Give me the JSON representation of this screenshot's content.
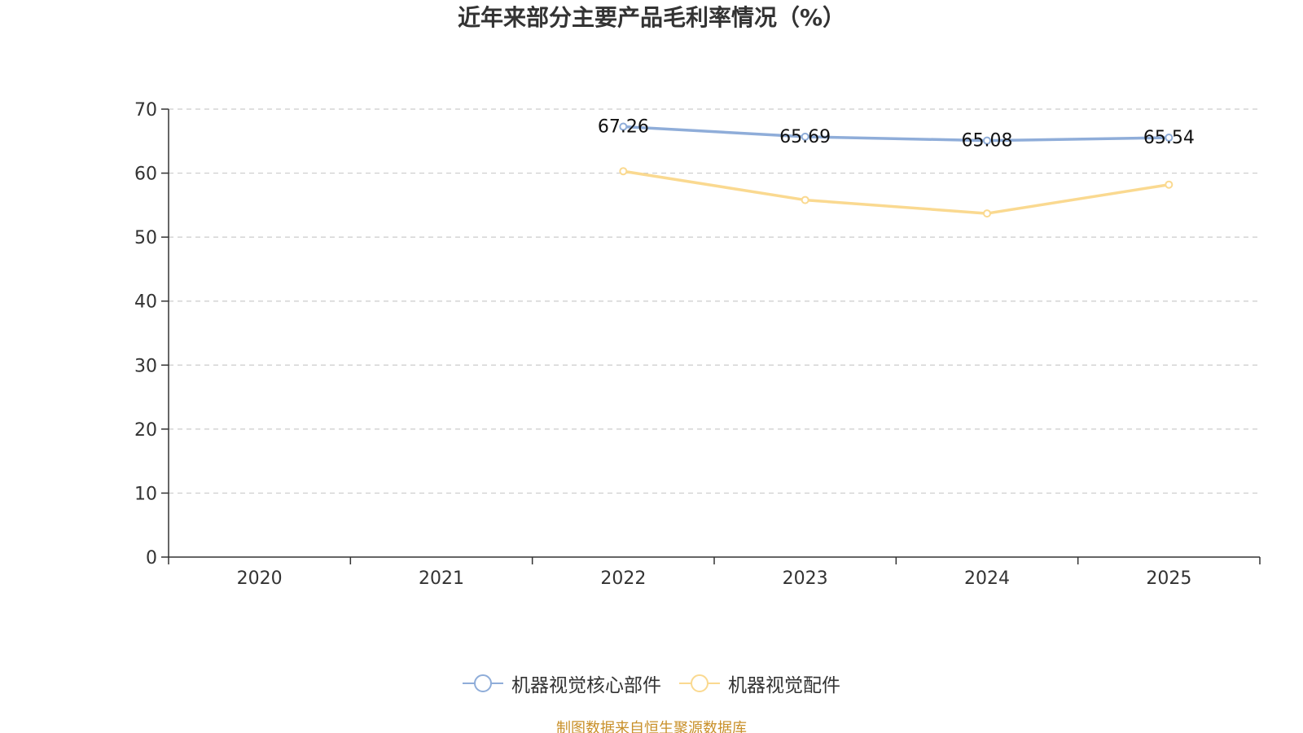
{
  "chart_data": {
    "type": "line",
    "title": "近年来部分主要产品毛利率情况（%）",
    "categories": [
      "2020",
      "2021",
      "2022",
      "2023",
      "2024",
      "2025"
    ],
    "ylim": [
      0,
      70
    ],
    "yticks": [
      0,
      10,
      20,
      30,
      40,
      50,
      60,
      70
    ],
    "grid": true,
    "legend_position": "bottom",
    "series": [
      {
        "name": "机器视觉核心部件",
        "color": "#8fadd9",
        "values": [
          null,
          null,
          67.26,
          65.69,
          65.08,
          65.54
        ],
        "labels": [
          null,
          null,
          "67.26",
          "65.69",
          "65.08",
          "65.54"
        ]
      },
      {
        "name": "机器视觉配件",
        "color": "#fad990",
        "values": [
          null,
          null,
          60.3,
          55.8,
          53.7,
          58.2
        ],
        "labels": [
          null,
          null,
          null,
          null,
          null,
          null
        ]
      }
    ],
    "source": "制图数据来自恒生聚源数据库"
  }
}
